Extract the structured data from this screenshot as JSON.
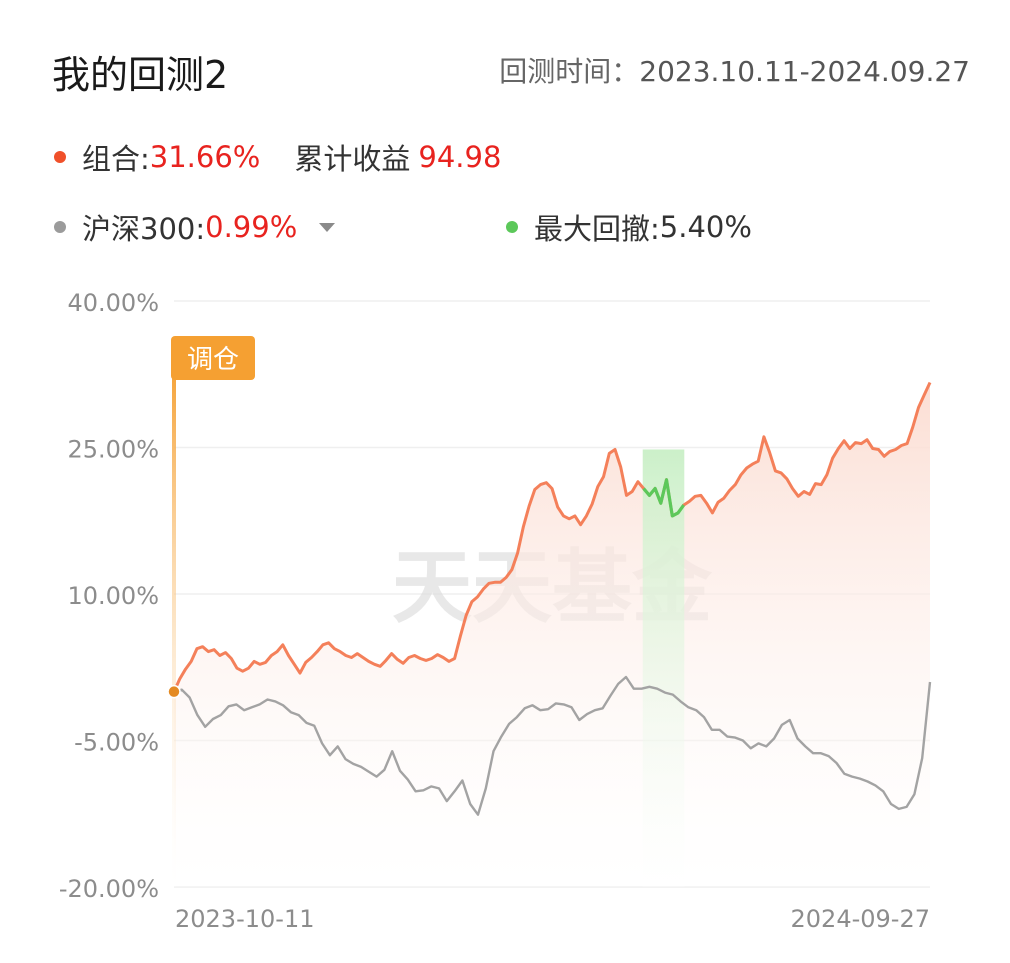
{
  "header": {
    "title": "我的回测2",
    "period_label": "回测时间：",
    "period_value": "2023.10.11-2024.09.27"
  },
  "summary": {
    "portfolio_label": "组合:",
    "portfolio_value": "31.66%",
    "cum_label": "累计收益",
    "cum_value": "94.98",
    "bench_label": "沪深300:",
    "bench_value": "0.99%",
    "drawdown_label": "最大回撤:",
    "drawdown_value": "5.40%",
    "bench_dropdown_icon": "caret-down-icon"
  },
  "colors": {
    "portfolio": "#f4805a",
    "benchmark": "#a3a3a3",
    "drawdown": "#5cc85a",
    "rebalance": "#f5a032",
    "value_red": "#e8231f"
  },
  "watermark": "天天基金",
  "chart_data": {
    "type": "line",
    "ylim": [
      -20,
      40
    ],
    "yticks": [
      "40.00%",
      "25.00%",
      "10.00%",
      "-5.00%",
      "-20.00%"
    ],
    "ytick_values": [
      40,
      25,
      10,
      -5,
      -20
    ],
    "x_start_label": "2023-10-11",
    "x_end_label": "2024-09-27",
    "rebalance_label": "调仓",
    "drawdown_range": [
      0.62,
      0.675
    ],
    "series": [
      {
        "name": "组合",
        "values": [
          0,
          1.3,
          2.3,
          3.1,
          4.4,
          4.6,
          4.1,
          4.3,
          3.7,
          4.0,
          3.4,
          2.4,
          2.1,
          2.4,
          3.1,
          2.8,
          3.0,
          3.7,
          4.1,
          4.8,
          3.7,
          2.8,
          1.9,
          3.0,
          3.5,
          4.1,
          4.8,
          5.0,
          4.4,
          4.1,
          3.7,
          3.5,
          3.9,
          3.5,
          3.1,
          2.8,
          2.6,
          3.2,
          3.9,
          3.3,
          2.9,
          3.5,
          3.7,
          3.4,
          3.2,
          3.4,
          3.8,
          3.5,
          3.1,
          3.4,
          5.7,
          7.8,
          9.2,
          9.7,
          10.5,
          11.1,
          11.2,
          11.2,
          11.7,
          12.5,
          14.2,
          16.9,
          19.0,
          20.7,
          21.2,
          21.4,
          20.8,
          18.9,
          18.0,
          17.7,
          18.0,
          17.1,
          18.0,
          19.2,
          21.0,
          22.0,
          24.4,
          24.8,
          23.0,
          20.1,
          20.5,
          21.5,
          20.8,
          20.1,
          20.8,
          19.3,
          21.7,
          18.0,
          18.3,
          19.1,
          19.5,
          20.0,
          20.1,
          19.3,
          18.3,
          19.4,
          19.8,
          20.6,
          21.2,
          22.2,
          22.9,
          23.3,
          23.6,
          26.1,
          24.5,
          22.6,
          22.4,
          21.8,
          20.8,
          20.0,
          20.5,
          20.2,
          21.3,
          21.2,
          22.2,
          23.9,
          24.9,
          25.7,
          24.9,
          25.5,
          25.4,
          25.8,
          24.9,
          24.8,
          24.1,
          24.6,
          24.8,
          25.2,
          25.4,
          27.1,
          29.1,
          30.4,
          31.66
        ]
      },
      {
        "name": "沪深300",
        "values": [
          0,
          0.2,
          -0.6,
          -2.4,
          -3.6,
          -2.8,
          -2.4,
          -1.5,
          -1.3,
          -1.9,
          -1.6,
          -1.3,
          -0.8,
          -1.0,
          -1.4,
          -2.1,
          -2.4,
          -3.2,
          -3.5,
          -5.3,
          -6.5,
          -5.6,
          -6.9,
          -7.4,
          -7.7,
          -8.2,
          -8.7,
          -8.0,
          -6.1,
          -8.1,
          -9.0,
          -10.2,
          -10.1,
          -9.7,
          -9.9,
          -11.2,
          -10.2,
          -9.1,
          -11.5,
          -12.6,
          -9.9,
          -6.1,
          -4.6,
          -3.3,
          -2.6,
          -1.7,
          -1.4,
          -1.9,
          -1.8,
          -1.2,
          -1.3,
          -1.6,
          -2.9,
          -2.3,
          -1.9,
          -1.7,
          -0.4,
          0.8,
          1.5,
          0.3,
          0.3,
          0.5,
          0.3,
          -0.1,
          -0.3,
          -1.0,
          -1.6,
          -1.9,
          -2.6,
          -3.9,
          -3.9,
          -4.6,
          -4.7,
          -5.0,
          -5.8,
          -5.3,
          -5.6,
          -4.8,
          -3.4,
          -2.9,
          -4.8,
          -5.6,
          -6.3,
          -6.3,
          -6.6,
          -7.3,
          -8.4,
          -8.7,
          -8.9,
          -9.2,
          -9.6,
          -10.2,
          -11.5,
          -12.0,
          -11.8,
          -10.5,
          -6.8,
          0.99
        ]
      }
    ]
  }
}
